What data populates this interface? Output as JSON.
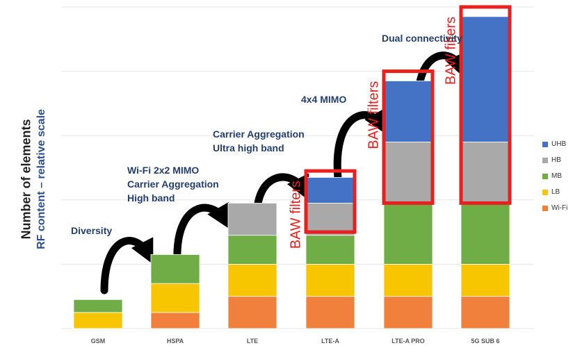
{
  "chart_data": {
    "type": "bar",
    "stacked": true,
    "title": "",
    "xlabel": "",
    "ylabel": "Number of elements",
    "ylabel_secondary": "RF content – relative scale",
    "ylim": [
      0,
      5
    ],
    "grid": true,
    "legend_position": "right",
    "categories": [
      "GSM",
      "HSPA",
      "LTE",
      "LTE-A",
      "LTE-A PRO",
      "5G SUB 6"
    ],
    "series": [
      {
        "name": "Wi-Fi",
        "color": "#f0803c",
        "values": [
          0,
          0.25,
          0.5,
          0.5,
          0.5,
          0.5
        ]
      },
      {
        "name": "LB",
        "color": "#f7c600",
        "values": [
          0.25,
          0.45,
          0.5,
          0.5,
          0.5,
          0.5
        ]
      },
      {
        "name": "MB",
        "color": "#70ad47",
        "values": [
          0.2,
          0.45,
          0.45,
          0.45,
          0.95,
          0.95
        ]
      },
      {
        "name": "HB",
        "color": "#a9a9a9",
        "values": [
          0,
          0,
          0.5,
          0.5,
          0.95,
          0.95
        ]
      },
      {
        "name": "UHB",
        "color": "#4472c4",
        "values": [
          0,
          0,
          0,
          0.4,
          0.95,
          1.95
        ]
      }
    ],
    "legend_order": [
      "UHB",
      "HB",
      "MB",
      "LB",
      "Wi-Fi"
    ],
    "highlight_boxes": [
      {
        "category": "LTE-A",
        "from": 1.5,
        "to": 2.45,
        "label": "BAW filters"
      },
      {
        "category": "LTE-A PRO",
        "from": 1.95,
        "to": 4.0,
        "label": "BAW filters"
      },
      {
        "category": "5G SUB 6",
        "from": 1.95,
        "to": 5.0,
        "label": "BAW filters"
      }
    ],
    "highlight_color": "#e8201f",
    "annotations": [
      {
        "after": "GSM",
        "lines": [
          "Diversity"
        ]
      },
      {
        "after": "HSPA",
        "lines": [
          "Wi-Fi 2x2 MIMO",
          "Carrier Aggregation",
          "High band"
        ]
      },
      {
        "after": "LTE",
        "lines": [
          "Carrier Aggregation",
          "Ultra high band"
        ]
      },
      {
        "after": "LTE-A",
        "lines": [
          "4x4 MIMO"
        ]
      },
      {
        "after": "LTE-A PRO",
        "lines": [
          "Dual connectivity"
        ]
      }
    ]
  }
}
